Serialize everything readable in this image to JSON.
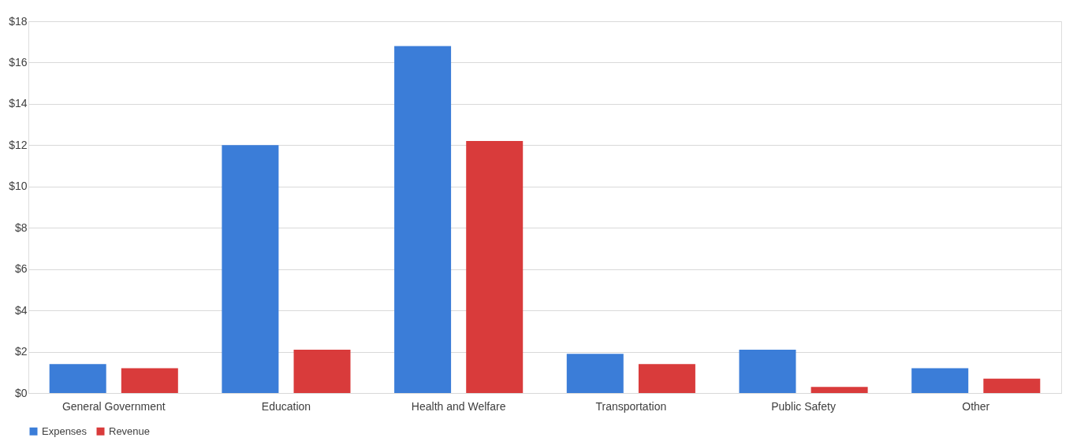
{
  "chart_data": {
    "type": "bar",
    "categories": [
      "General Government",
      "Education",
      "Health and Welfare",
      "Transportation",
      "Public Safety",
      "Other"
    ],
    "series": [
      {
        "name": "Expenses",
        "color": "#3b7dd8",
        "values": [
          1.4,
          12.0,
          16.8,
          1.9,
          2.1,
          1.2
        ]
      },
      {
        "name": "Revenue",
        "color": "#d93b3b",
        "values": [
          1.2,
          2.1,
          12.2,
          1.4,
          0.3,
          0.7
        ]
      }
    ],
    "ylim": [
      0,
      18
    ],
    "yticks": [
      {
        "value": 0,
        "label": "$0"
      },
      {
        "value": 2,
        "label": "$2"
      },
      {
        "value": 4,
        "label": "$4"
      },
      {
        "value": 6,
        "label": "$6"
      },
      {
        "value": 8,
        "label": "$8"
      },
      {
        "value": 10,
        "label": "$10"
      },
      {
        "value": 12,
        "label": "$12"
      },
      {
        "value": 14,
        "label": "$14"
      },
      {
        "value": 16,
        "label": "$16"
      },
      {
        "value": 18,
        "label": "$18"
      }
    ],
    "grid": "y",
    "legend": "bottom"
  }
}
